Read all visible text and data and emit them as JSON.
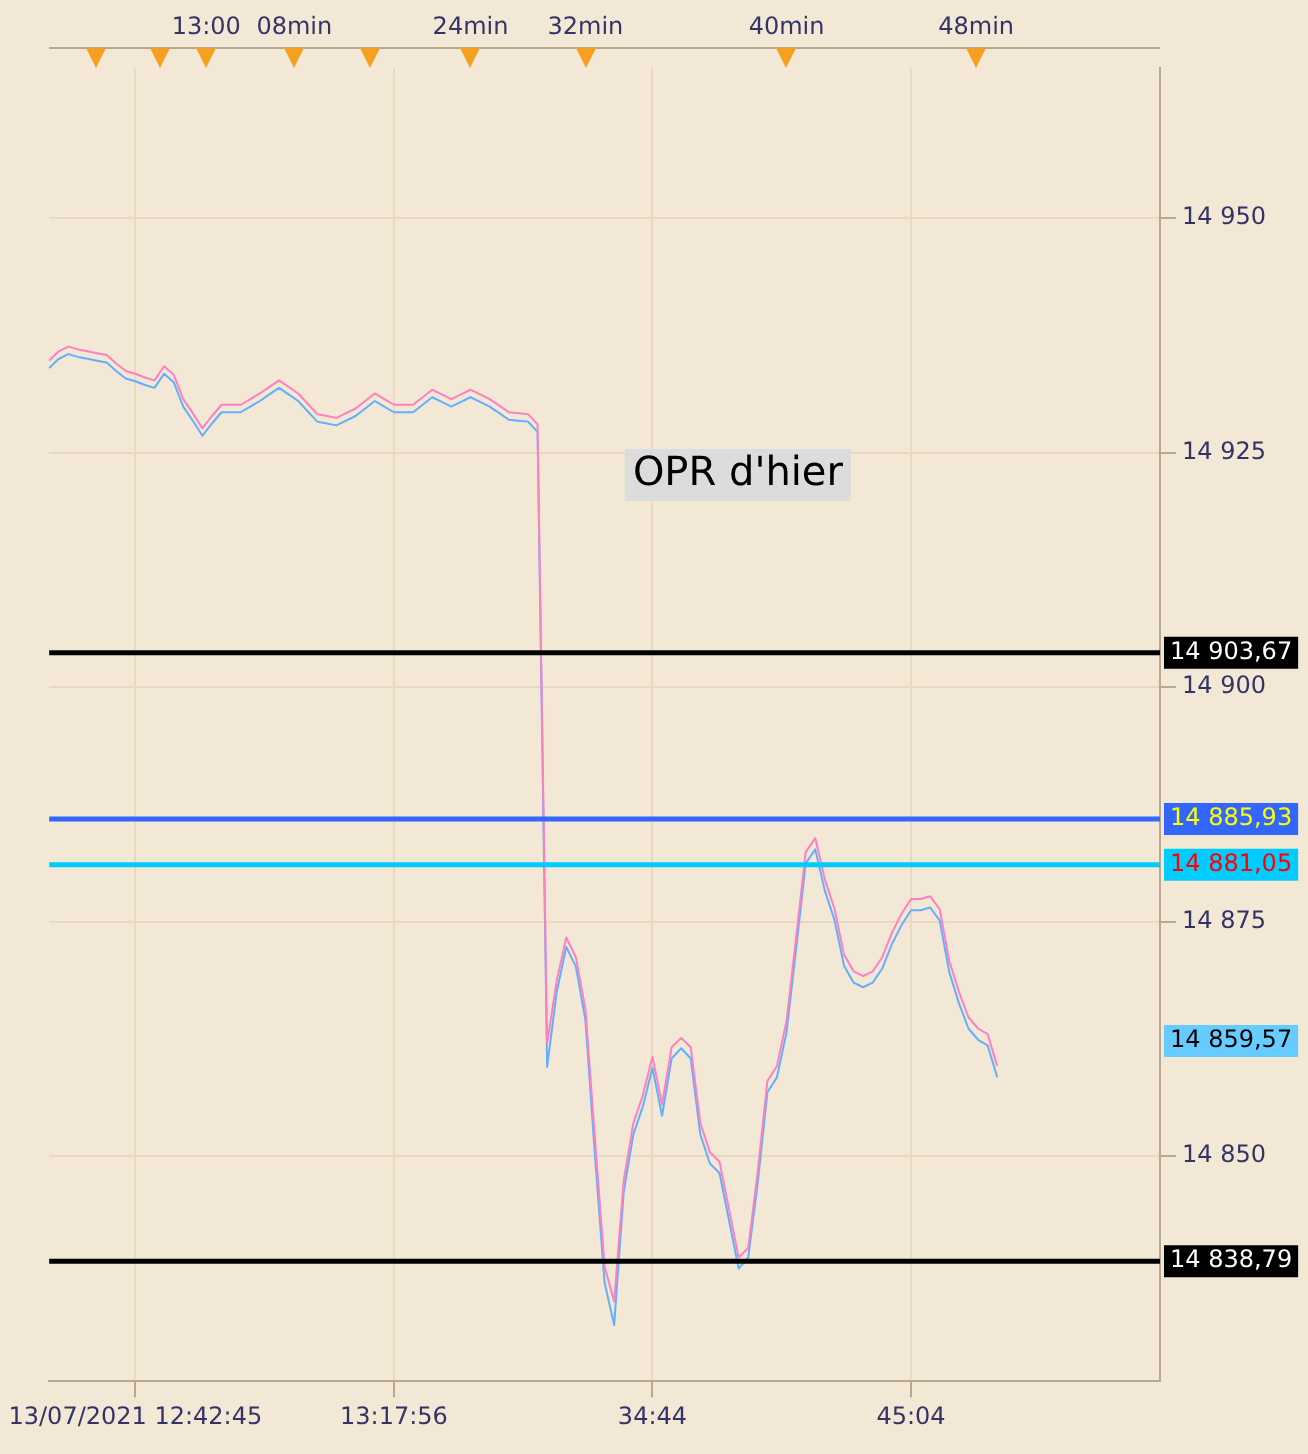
{
  "chart_data": {
    "type": "line",
    "annotations": [
      "OPR d'hier",
      "14 859,57",
      "13:00",
      "08min",
      "24min",
      "32min",
      "40min",
      "48min"
    ],
    "categories": [
      null,
      null,
      null,
      null,
      null,
      null,
      null,
      null,
      null,
      "13/07/2021 12:42:45",
      null,
      null,
      null,
      null,
      null,
      null,
      null,
      null,
      null,
      null,
      null,
      null,
      null,
      null,
      null,
      null,
      null,
      null,
      null,
      null,
      null,
      null,
      null,
      null,
      null,
      null,
      "13:17:56",
      null,
      null,
      null,
      null,
      null,
      null,
      null,
      null,
      null,
      null,
      null,
      null,
      null,
      null,
      null,
      null,
      null,
      null,
      null,
      null,
      null,
      null,
      null,
      null,
      null,
      null,
      "34:44",
      null,
      null,
      null,
      null,
      null,
      null,
      null,
      null,
      null,
      null,
      null,
      null,
      null,
      null,
      null,
      null,
      null,
      null,
      null,
      null,
      null,
      null,
      null,
      null,
      null,
      null,
      "45:04",
      null,
      null,
      null,
      null,
      null,
      null,
      null,
      null,
      null,
      null,
      null,
      null,
      null,
      null,
      null,
      null,
      null,
      null,
      null,
      null,
      null,
      null,
      null,
      null,
      null,
      null
    ],
    "series": [
      {
        "color": "#ff80c0",
        "values": [
          14934.8,
          14935.8,
          14936.3,
          14936.0,
          14935.8,
          14935.6,
          14935.4,
          14934.5,
          14933.7,
          14933.4,
          14933.0,
          14932.7,
          14934.2,
          14933.3,
          14930.7,
          14929.2,
          14927.6,
          14928.9,
          14930.1,
          14930.1,
          14930.1,
          14930.7,
          14931.3,
          14932.0,
          14932.7,
          14932.0,
          14931.3,
          14930.2,
          14929.1,
          14928.9,
          14928.7,
          14929.2,
          14929.7,
          14930.5,
          14931.3,
          14930.7,
          14930.1,
          14930.1,
          14930.1,
          14930.9,
          14931.7,
          14931.2,
          14930.7,
          14931.2,
          14931.7,
          14931.2,
          14930.7,
          14930.0,
          14929.3,
          14929.2,
          14929.1,
          14928.0,
          14862.0,
          14868.7,
          14873.3,
          14871.2,
          14865.7,
          14851.8,
          14838.2,
          14834.5,
          14847.4,
          14853.5,
          14856.5,
          14860.6,
          14855.5,
          14861.6,
          14862.6,
          14861.6,
          14853.5,
          14850.4,
          14849.4,
          14844.3,
          14839.2,
          14840.2,
          14848.4,
          14858.0,
          14859.6,
          14864.4,
          14873.3,
          14882.4,
          14883.9,
          14879.5,
          14876.4,
          14871.5,
          14869.7,
          14869.2,
          14869.7,
          14871.2,
          14873.8,
          14875.8,
          14877.4,
          14877.4,
          14877.7,
          14876.3,
          14870.8,
          14867.5,
          14864.8,
          14863.6,
          14863.0,
          14859.6,
          null,
          null,
          null,
          null,
          null,
          null,
          null,
          null,
          null,
          null,
          null,
          null,
          null,
          null,
          null,
          null,
          null
        ]
      },
      {
        "color": "#60b0ff",
        "values": [
          14934.0,
          14935.0,
          14935.5,
          14935.2,
          14935.0,
          14934.8,
          14934.6,
          14933.7,
          14932.9,
          14932.6,
          14932.2,
          14931.9,
          14933.4,
          14932.5,
          14929.9,
          14928.4,
          14926.8,
          14928.1,
          14929.3,
          14929.3,
          14929.3,
          14929.9,
          14930.5,
          14931.2,
          14931.9,
          14931.2,
          14930.5,
          14929.4,
          14928.3,
          14928.1,
          14927.9,
          14928.4,
          14928.9,
          14929.7,
          14930.5,
          14929.9,
          14929.3,
          14929.3,
          14929.3,
          14930.1,
          14930.9,
          14930.4,
          14929.9,
          14930.4,
          14930.9,
          14930.4,
          14929.9,
          14929.2,
          14928.5,
          14928.4,
          14928.3,
          14927.2,
          14859.5,
          14867.5,
          14872.3,
          14870.2,
          14864.5,
          14850.0,
          14836.5,
          14832.0,
          14846.2,
          14852.3,
          14855.3,
          14859.4,
          14854.3,
          14860.4,
          14861.5,
          14860.4,
          14852.3,
          14849.2,
          14848.2,
          14843.1,
          14838.0,
          14839.2,
          14847.2,
          14856.8,
          14858.4,
          14863.2,
          14872.1,
          14881.2,
          14882.7,
          14878.3,
          14875.2,
          14870.3,
          14868.5,
          14868.0,
          14868.5,
          14870.0,
          14872.6,
          14874.6,
          14876.2,
          14876.2,
          14876.5,
          14875.1,
          14869.6,
          14866.3,
          14863.6,
          14862.4,
          14861.8,
          14858.4,
          null,
          null,
          null,
          null,
          null,
          null,
          null,
          null,
          null,
          null,
          null,
          null,
          null,
          null,
          null,
          null,
          null
        ]
      }
    ],
    "ylim": [
      14826,
      14966
    ],
    "yticks": [
      {
        "value": 14850,
        "label": "14 850"
      },
      {
        "value": 14875,
        "label": "14 875"
      },
      {
        "value": 14900,
        "label": "14 900"
      },
      {
        "value": 14925,
        "label": "14 925"
      },
      {
        "value": 14950,
        "label": "14 950"
      }
    ],
    "ref_lines": [
      {
        "axis": "y",
        "value": 14903.67,
        "label": "14 903,67",
        "color": "#000000"
      },
      {
        "axis": "y",
        "value": 14885.93,
        "label": "14 885,93",
        "color": "#3366ff"
      },
      {
        "axis": "y",
        "value": 14881.05,
        "label": "14 881,05",
        "color": "#00ccff"
      },
      {
        "axis": "y",
        "value": 14838.79,
        "label": "14 838,79",
        "color": "#000000"
      }
    ],
    "grid": true,
    "legend": false,
    "marker": "none",
    "line_style": "solid"
  }
}
